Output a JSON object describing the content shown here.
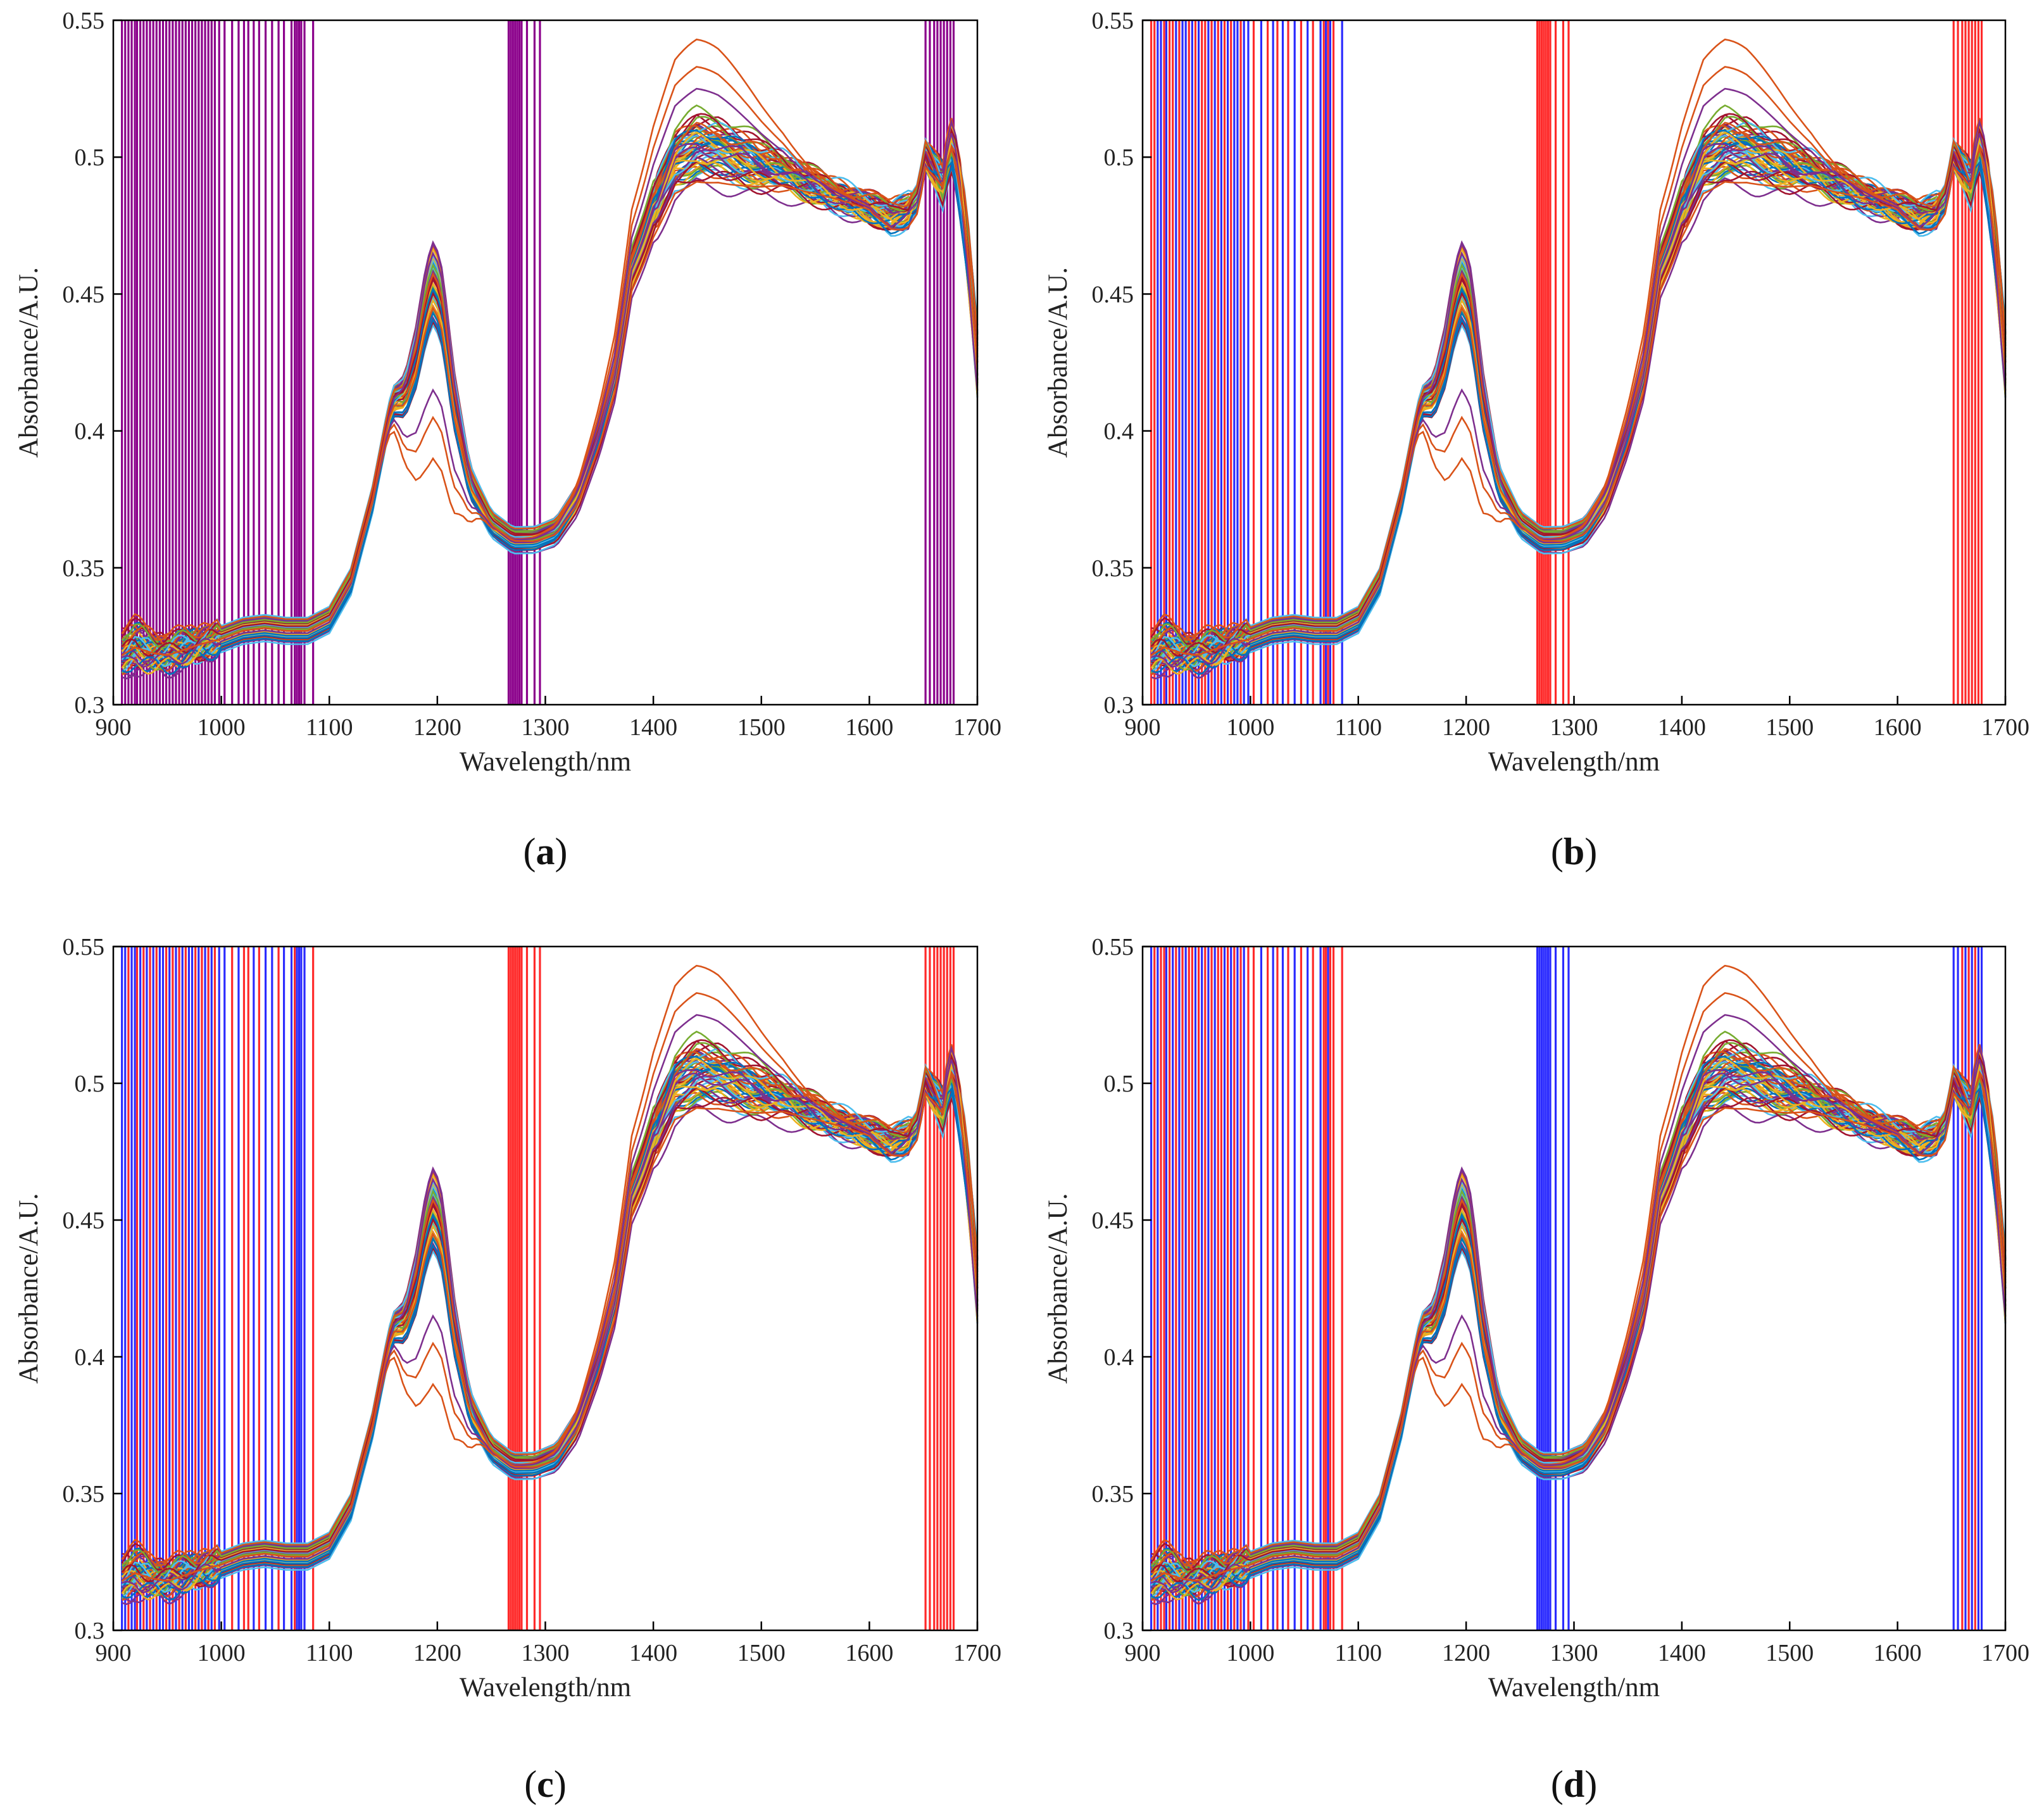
{
  "colors": {
    "purple": "#8B008B",
    "red": "#FF2A2A",
    "blue": "#2B2BFF",
    "frame": "#000000",
    "spectra_palette": [
      "#0072BD",
      "#D95319",
      "#EDB120",
      "#7E2F8E",
      "#77AC30",
      "#4DBEEE",
      "#A2142F"
    ]
  },
  "chart_data": [
    {
      "type": "line",
      "panel_label": "a",
      "xlabel": "Wavelength/nm",
      "ylabel": "Absorbance/A.U.",
      "xlim": [
        900,
        1700
      ],
      "ylim": [
        0.3,
        0.55
      ],
      "xticks": [
        "900",
        "1000",
        "1100",
        "1200",
        "1300",
        "1400",
        "1500",
        "1600",
        "1700"
      ],
      "yticks": [
        "0.3",
        "0.35",
        "0.4",
        "0.45",
        "0.5",
        "0.55"
      ],
      "series_note": "about 60 NIR absorbance spectra",
      "mean_spectrum": {
        "x": [
          908,
          920,
          935,
          950,
          965,
          980,
          1000,
          1020,
          1040,
          1060,
          1080,
          1100,
          1120,
          1140,
          1155,
          1160,
          1170,
          1180,
          1190,
          1197,
          1205,
          1215,
          1230,
          1250,
          1270,
          1290,
          1310,
          1330,
          1350,
          1365,
          1375,
          1380,
          1390,
          1400,
          1420,
          1440,
          1460,
          1480,
          1500,
          1520,
          1540,
          1560,
          1580,
          1600,
          1620,
          1635,
          1645,
          1652,
          1660,
          1668,
          1675,
          1682,
          1690,
          1700
        ],
        "y": [
          0.318,
          0.321,
          0.319,
          0.318,
          0.32,
          0.322,
          0.324,
          0.327,
          0.328,
          0.327,
          0.327,
          0.331,
          0.345,
          0.375,
          0.405,
          0.411,
          0.413,
          0.427,
          0.448,
          0.456,
          0.445,
          0.413,
          0.382,
          0.366,
          0.36,
          0.36,
          0.363,
          0.375,
          0.398,
          0.42,
          0.445,
          0.458,
          0.468,
          0.48,
          0.498,
          0.503,
          0.502,
          0.499,
          0.496,
          0.494,
          0.49,
          0.487,
          0.484,
          0.481,
          0.478,
          0.48,
          0.485,
          0.5,
          0.495,
          0.49,
          0.505,
          0.495,
          0.47,
          0.425
        ]
      },
      "selected_wavelengths_nm": [
        908,
        911,
        914,
        917,
        920,
        922,
        925,
        928,
        931,
        934,
        937,
        940,
        943,
        946,
        949,
        952,
        955,
        958,
        961,
        964,
        967,
        970,
        973,
        976,
        979,
        982,
        985,
        988,
        991,
        994,
        998,
        1003,
        1010,
        1016,
        1021,
        1025,
        1030,
        1035,
        1041,
        1047,
        1053,
        1058,
        1065,
        1068,
        1070,
        1072,
        1074,
        1077,
        1085,
        1266,
        1268,
        1270,
        1272,
        1274,
        1276,
        1278,
        1283,
        1290,
        1295,
        1652,
        1656,
        1660,
        1663,
        1666,
        1669,
        1672,
        1675,
        1678
      ],
      "band_colors": [
        "purple"
      ]
    },
    {
      "type": "line",
      "panel_label": "b",
      "xlabel": "Wavelength/nm",
      "ylabel": "Absorbance/A.U.",
      "xlim": [
        900,
        1700
      ],
      "ylim": [
        0.3,
        0.55
      ],
      "xticks": [
        "900",
        "1000",
        "1100",
        "1200",
        "1300",
        "1400",
        "1500",
        "1600",
        "1700"
      ],
      "yticks": [
        "0.3",
        "0.35",
        "0.4",
        "0.45",
        "0.5",
        "0.55"
      ],
      "series_note": "same spectra as (a)",
      "selected_wavelengths_nm": [
        908,
        911,
        914,
        917,
        920,
        922,
        925,
        928,
        931,
        934,
        937,
        940,
        943,
        946,
        949,
        952,
        955,
        958,
        961,
        964,
        967,
        970,
        973,
        976,
        979,
        982,
        985,
        988,
        991,
        994,
        998,
        1003,
        1010,
        1016,
        1021,
        1025,
        1030,
        1035,
        1041,
        1047,
        1053,
        1058,
        1065,
        1068,
        1070,
        1072,
        1074,
        1077,
        1085,
        1266,
        1268,
        1270,
        1272,
        1274,
        1276,
        1278,
        1283,
        1290,
        1295,
        1652,
        1656,
        1660,
        1663,
        1666,
        1669,
        1672,
        1675,
        1678
      ],
      "band_colors": [
        "red",
        "red",
        "blue",
        "blue",
        "red",
        "blue",
        "red",
        "red",
        "blue",
        "red",
        "blue",
        "blue",
        "red",
        "blue",
        "red",
        "blue",
        "red",
        "red",
        "blue",
        "red",
        "blue",
        "red",
        "blue",
        "red",
        "blue",
        "red",
        "blue",
        "blue",
        "red",
        "blue",
        "blue",
        "red",
        "blue",
        "red",
        "blue",
        "red",
        "blue",
        "red",
        "blue",
        "red",
        "blue",
        "red",
        "blue",
        "red",
        "blue",
        "red",
        "blue",
        "red",
        "blue",
        "red",
        "red",
        "red",
        "red",
        "red",
        "red",
        "red",
        "red",
        "red",
        "red",
        "red",
        "red",
        "red",
        "red",
        "red",
        "red",
        "red",
        "red",
        "red"
      ]
    },
    {
      "type": "line",
      "panel_label": "c",
      "xlabel": "Wavelength/nm",
      "ylabel": "Absorbance/A.U.",
      "xlim": [
        900,
        1700
      ],
      "ylim": [
        0.3,
        0.55
      ],
      "xticks": [
        "900",
        "1000",
        "1100",
        "1200",
        "1300",
        "1400",
        "1500",
        "1600",
        "1700"
      ],
      "yticks": [
        "0.3",
        "0.35",
        "0.4",
        "0.45",
        "0.5",
        "0.55"
      ],
      "series_note": "same spectra as (a)",
      "selected_wavelengths_nm": [
        908,
        911,
        914,
        917,
        920,
        922,
        925,
        928,
        931,
        934,
        937,
        940,
        943,
        946,
        949,
        952,
        955,
        958,
        961,
        964,
        967,
        970,
        973,
        976,
        979,
        982,
        985,
        988,
        991,
        994,
        998,
        1003,
        1010,
        1016,
        1021,
        1025,
        1030,
        1035,
        1041,
        1047,
        1053,
        1058,
        1065,
        1068,
        1070,
        1072,
        1074,
        1077,
        1085,
        1266,
        1268,
        1270,
        1272,
        1274,
        1276,
        1278,
        1283,
        1290,
        1295,
        1652,
        1656,
        1660,
        1663,
        1666,
        1669,
        1672,
        1675,
        1678
      ],
      "band_colors": [
        "blue",
        "blue",
        "red",
        "blue",
        "blue",
        "red",
        "blue",
        "red",
        "blue",
        "red",
        "blue",
        "red",
        "blue",
        "blue",
        "red",
        "blue",
        "red",
        "blue",
        "red",
        "blue",
        "red",
        "blue",
        "blue",
        "red",
        "blue",
        "red",
        "blue",
        "red",
        "blue",
        "red",
        "blue",
        "blue",
        "red",
        "blue",
        "red",
        "red",
        "blue",
        "red",
        "blue",
        "blue",
        "red",
        "blue",
        "blue",
        "red",
        "blue",
        "blue",
        "blue",
        "blue",
        "red",
        "red",
        "red",
        "red",
        "red",
        "red",
        "red",
        "red",
        "red",
        "red",
        "red",
        "red",
        "red",
        "red",
        "red",
        "red",
        "red",
        "red",
        "red",
        "red"
      ]
    },
    {
      "type": "line",
      "panel_label": "d",
      "xlabel": "Wavelength/nm",
      "ylabel": "Absorbance/A.U.",
      "xlim": [
        900,
        1700
      ],
      "ylim": [
        0.3,
        0.55
      ],
      "xticks": [
        "900",
        "1000",
        "1100",
        "1200",
        "1300",
        "1400",
        "1500",
        "1600",
        "1700"
      ],
      "yticks": [
        "0.3",
        "0.35",
        "0.4",
        "0.45",
        "0.5",
        "0.55"
      ],
      "series_note": "same spectra as (a)",
      "selected_wavelengths_nm": [
        908,
        911,
        914,
        917,
        920,
        922,
        925,
        928,
        931,
        934,
        937,
        940,
        943,
        946,
        949,
        952,
        955,
        958,
        961,
        964,
        967,
        970,
        973,
        976,
        979,
        982,
        985,
        988,
        991,
        994,
        998,
        1003,
        1010,
        1016,
        1021,
        1025,
        1030,
        1035,
        1041,
        1047,
        1053,
        1058,
        1065,
        1068,
        1070,
        1072,
        1074,
        1077,
        1085,
        1266,
        1268,
        1270,
        1272,
        1274,
        1276,
        1278,
        1283,
        1290,
        1295,
        1652,
        1656,
        1660,
        1663,
        1666,
        1669,
        1672,
        1675,
        1678
      ],
      "band_colors": [
        "blue",
        "red",
        "blue",
        "red",
        "red",
        "blue",
        "red",
        "blue",
        "red",
        "blue",
        "red",
        "blue",
        "red",
        "red",
        "blue",
        "red",
        "blue",
        "red",
        "blue",
        "red",
        "blue",
        "red",
        "red",
        "blue",
        "red",
        "blue",
        "red",
        "blue",
        "red",
        "blue",
        "red",
        "red",
        "blue",
        "red",
        "blue",
        "red",
        "blue",
        "red",
        "blue",
        "red",
        "blue",
        "red",
        "blue",
        "red",
        "red",
        "blue",
        "red",
        "red",
        "red",
        "blue",
        "blue",
        "blue",
        "blue",
        "blue",
        "blue",
        "blue",
        "blue",
        "blue",
        "blue",
        "blue",
        "blue",
        "red",
        "blue",
        "red",
        "blue",
        "red",
        "blue",
        "blue"
      ]
    }
  ]
}
